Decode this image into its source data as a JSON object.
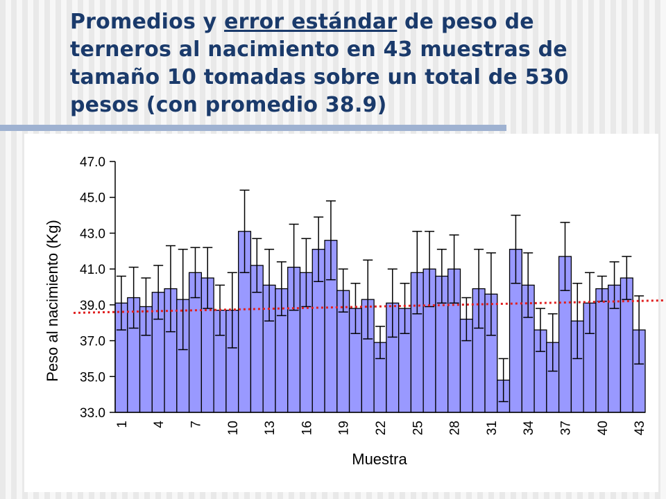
{
  "title": {
    "part1": "Promedios y ",
    "underlined": "error estándar",
    "part2": " de peso de terneros al nacimiento en 43 muestras de tamaño 10 tomadas sobre un total de 530 pesos (con promedio 38.9)"
  },
  "colors": {
    "title": "#1a3a6b",
    "bar_fill": "#9999ff",
    "bar_stroke": "#000000",
    "mean_line": "#e02020"
  },
  "chart_data": {
    "type": "bar",
    "xlabel": "Muestra",
    "ylabel": "Peso al nacimiento (Kg)",
    "ylim": [
      33.0,
      47.0
    ],
    "yticks": [
      "33.0",
      "35.0",
      "37.0",
      "39.0",
      "41.0",
      "43.0",
      "45.0",
      "47.0"
    ],
    "xtick_labels": [
      "1",
      "4",
      "7",
      "10",
      "13",
      "16",
      "19",
      "22",
      "25",
      "28",
      "31",
      "34",
      "37",
      "40",
      "43"
    ],
    "categories": [
      1,
      2,
      3,
      4,
      5,
      6,
      7,
      8,
      9,
      10,
      11,
      12,
      13,
      14,
      15,
      16,
      17,
      18,
      19,
      20,
      21,
      22,
      23,
      24,
      25,
      26,
      27,
      28,
      29,
      30,
      31,
      32,
      33,
      34,
      35,
      36,
      37,
      38,
      39,
      40,
      41,
      42,
      43
    ],
    "values": [
      39.1,
      39.4,
      38.9,
      39.7,
      39.9,
      39.3,
      40.8,
      40.5,
      38.7,
      38.7,
      43.1,
      41.2,
      40.1,
      39.9,
      41.1,
      40.8,
      42.1,
      42.6,
      39.8,
      38.8,
      39.3,
      36.9,
      39.1,
      38.8,
      40.8,
      41.0,
      40.6,
      41.0,
      38.2,
      39.9,
      39.6,
      34.8,
      42.1,
      40.1,
      37.6,
      36.9,
      41.7,
      38.1,
      39.1,
      39.9,
      40.1,
      40.5,
      37.6
    ],
    "std_error": [
      1.5,
      1.7,
      1.6,
      1.5,
      2.4,
      2.8,
      1.4,
      1.7,
      1.4,
      2.1,
      2.3,
      1.5,
      2.0,
      1.5,
      2.4,
      1.9,
      1.8,
      2.2,
      1.2,
      1.4,
      2.2,
      0.9,
      1.9,
      1.4,
      2.3,
      2.1,
      1.5,
      1.9,
      1.2,
      2.2,
      2.3,
      1.2,
      1.9,
      1.8,
      1.2,
      1.6,
      1.9,
      2.1,
      1.7,
      0.7,
      1.3,
      1.2,
      1.9
    ],
    "reference_line": 38.9,
    "grid": false,
    "legend": "none"
  }
}
